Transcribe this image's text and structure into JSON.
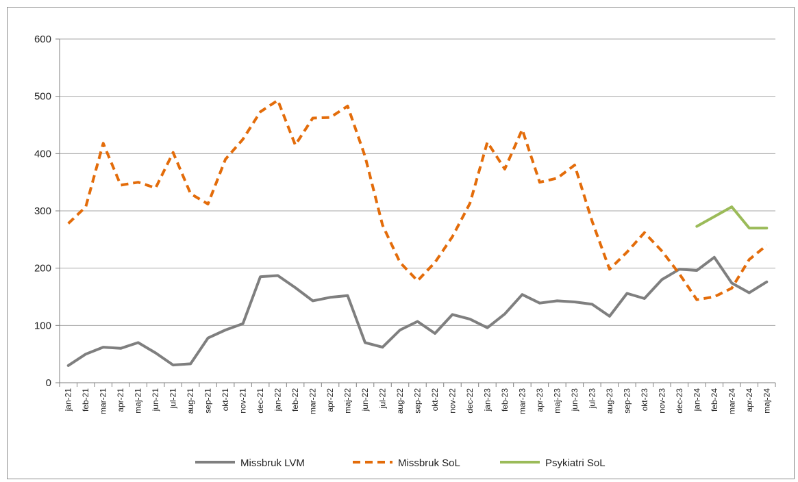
{
  "chart_data": {
    "type": "line",
    "title": "",
    "xlabel": "",
    "ylabel": "",
    "ylim": [
      0,
      600
    ],
    "yticks": [
      0,
      100,
      200,
      300,
      400,
      500,
      600
    ],
    "grid": true,
    "legend_position": "bottom",
    "categories": [
      "jan-21",
      "feb-21",
      "mar-21",
      "apr-21",
      "maj-21",
      "jun-21",
      "jul-21",
      "aug-21",
      "sep-21",
      "okt-21",
      "nov-21",
      "dec-21",
      "jan-22",
      "feb-22",
      "mar-22",
      "apr-22",
      "maj-22",
      "jun-22",
      "jul-22",
      "aug-22",
      "sep-22",
      "okt-22",
      "nov-22",
      "dec-22",
      "jan-23",
      "feb-23",
      "mar-23",
      "apr-23",
      "maj-23",
      "jun-23",
      "jul-23",
      "aug-23",
      "sep-23",
      "okt-23",
      "nov-23",
      "dec-23",
      "jan-24",
      "feb-24",
      "mar-24",
      "apr-24",
      "maj-24"
    ],
    "series": [
      {
        "name": "Missbruk LVM",
        "color": "#7f7f7f",
        "style": "solid",
        "values": [
          30,
          50,
          62,
          60,
          70,
          52,
          31,
          33,
          78,
          92,
          103,
          185,
          187,
          166,
          143,
          149,
          152,
          70,
          62,
          92,
          107,
          86,
          119,
          111,
          96,
          120,
          154,
          139,
          143,
          141,
          137,
          116,
          156,
          147,
          180,
          198,
          196,
          219,
          174,
          157,
          176
        ]
      },
      {
        "name": "Missbruk SoL",
        "color": "#e36c0a",
        "style": "dashed",
        "values": [
          278,
          307,
          418,
          345,
          350,
          340,
          402,
          330,
          312,
          390,
          425,
          473,
          493,
          415,
          462,
          463,
          483,
          395,
          275,
          210,
          178,
          210,
          255,
          313,
          420,
          373,
          442,
          350,
          357,
          380,
          282,
          198,
          228,
          262,
          230,
          190,
          145,
          150,
          165,
          215,
          240
        ]
      },
      {
        "name": "Psykiatri SoL",
        "color": "#9bbb59",
        "style": "solid",
        "values": [
          null,
          null,
          null,
          null,
          null,
          null,
          null,
          null,
          null,
          null,
          null,
          null,
          null,
          null,
          null,
          null,
          null,
          null,
          null,
          null,
          null,
          null,
          null,
          null,
          null,
          null,
          null,
          null,
          null,
          null,
          null,
          null,
          null,
          null,
          null,
          null,
          273,
          290,
          307,
          270,
          270
        ]
      }
    ]
  }
}
